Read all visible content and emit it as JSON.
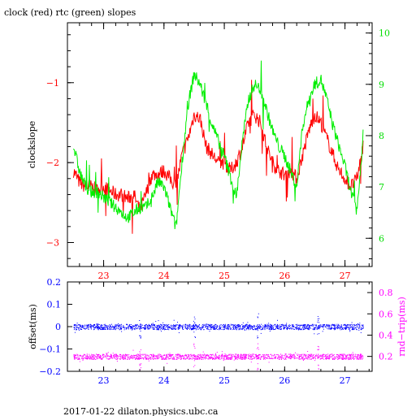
{
  "title": "clock (red) rtc (green) slopes",
  "footer": "2017-01-22  dilaton.physics.ubc.ca",
  "colors": {
    "red": "#ff0000",
    "green": "#00ee00",
    "blue": "#0000ff",
    "magenta": "#ff00ff",
    "frame": "#000000"
  },
  "chart_data": [
    {
      "type": "line",
      "title": "clock (red) rtc (green) slopes",
      "ylabel": "clockslope",
      "xlabel": "",
      "x_ticks": [
        "23",
        "24",
        "25",
        "26",
        "27"
      ],
      "y_ticks_left": [
        "−1",
        "−2",
        "−3"
      ],
      "y_ticks_right": [
        "10",
        "9",
        "8",
        "7",
        "6"
      ],
      "xlim": [
        22.4,
        27.45
      ],
      "ylim_left": [
        -3.3,
        -0.25
      ],
      "ylim_right": [
        5.45,
        10.2
      ],
      "series": [
        {
          "name": "clock",
          "color": "#ff0000",
          "axis": "left",
          "x": [
            22.5,
            22.6,
            22.7,
            22.8,
            22.9,
            23.0,
            23.1,
            23.2,
            23.3,
            23.4,
            23.5,
            23.6,
            23.7,
            23.8,
            23.9,
            24.0,
            24.1,
            24.2,
            24.3,
            24.4,
            24.5,
            24.6,
            24.7,
            24.8,
            24.9,
            25.0,
            25.1,
            25.2,
            25.3,
            25.4,
            25.5,
            25.6,
            25.7,
            25.8,
            25.9,
            26.0,
            26.1,
            26.2,
            26.3,
            26.4,
            26.5,
            26.6,
            26.7,
            26.8,
            26.9,
            27.0,
            27.1,
            27.2,
            27.3
          ],
          "values": [
            -2.1,
            -2.25,
            -2.3,
            -2.3,
            -2.35,
            -2.3,
            -2.35,
            -2.4,
            -2.4,
            -2.45,
            -2.4,
            -2.6,
            -2.4,
            -2.15,
            -2.15,
            -2.1,
            -2.2,
            -2.3,
            -1.9,
            -1.7,
            -1.4,
            -1.45,
            -1.8,
            -1.9,
            -2.0,
            -2.0,
            -2.1,
            -2.0,
            -1.8,
            -1.5,
            -1.4,
            -1.5,
            -1.8,
            -2.0,
            -2.1,
            -2.15,
            -2.1,
            -2.2,
            -1.9,
            -1.6,
            -1.4,
            -1.5,
            -1.7,
            -1.9,
            -2.1,
            -2.2,
            -2.3,
            -2.2,
            -1.8
          ]
        },
        {
          "name": "rtc",
          "color": "#00ee00",
          "axis": "right",
          "x": [
            22.5,
            22.6,
            22.7,
            22.8,
            22.9,
            23.0,
            23.1,
            23.2,
            23.3,
            23.4,
            23.5,
            23.6,
            23.7,
            23.8,
            23.9,
            24.0,
            24.1,
            24.2,
            24.3,
            24.4,
            24.5,
            24.6,
            24.7,
            24.8,
            24.9,
            25.0,
            25.1,
            25.2,
            25.3,
            25.4,
            25.5,
            25.6,
            25.7,
            25.8,
            25.9,
            26.0,
            26.1,
            26.2,
            26.3,
            26.4,
            26.5,
            26.6,
            26.7,
            26.8,
            26.9,
            27.0,
            27.1,
            27.2,
            27.3
          ],
          "values": [
            7.8,
            7.3,
            7.0,
            6.9,
            6.9,
            6.8,
            6.7,
            6.6,
            6.5,
            6.4,
            6.5,
            6.6,
            6.6,
            6.8,
            7.1,
            7.0,
            6.6,
            6.2,
            7.5,
            8.6,
            9.2,
            9.0,
            8.6,
            8.2,
            7.9,
            7.6,
            7.2,
            6.8,
            7.9,
            8.7,
            9.0,
            8.9,
            8.5,
            8.1,
            7.8,
            7.6,
            7.3,
            7.0,
            8.2,
            8.7,
            9.0,
            9.1,
            8.7,
            8.2,
            7.8,
            7.4,
            6.9,
            6.5,
            8.0
          ]
        }
      ]
    },
    {
      "type": "scatter",
      "ylabel": "offset(ms)",
      "ylabel_right": "rnd−trip(ms)",
      "x_ticks": [
        "23",
        "24",
        "25",
        "26",
        "27"
      ],
      "y_ticks_left": [
        "0.2",
        "0.1",
        "0",
        "−0.1",
        "−0.2"
      ],
      "y_ticks_right": [
        "0.8",
        "0.6",
        "0.4",
        "0.2"
      ],
      "xlim": [
        22.4,
        27.45
      ],
      "ylim_left": [
        -0.2,
        0.2
      ],
      "ylim_right": [
        0.06,
        0.9
      ],
      "series": [
        {
          "name": "offset",
          "color": "#0000ff",
          "axis": "left",
          "x": [
            22.5,
            27.3
          ],
          "values": [
            0.0,
            0.0
          ]
        },
        {
          "name": "rnd-trip",
          "color": "#ff00ff",
          "axis": "right",
          "x": [
            22.5,
            27.3
          ],
          "values": [
            0.2,
            0.2
          ]
        }
      ]
    }
  ]
}
